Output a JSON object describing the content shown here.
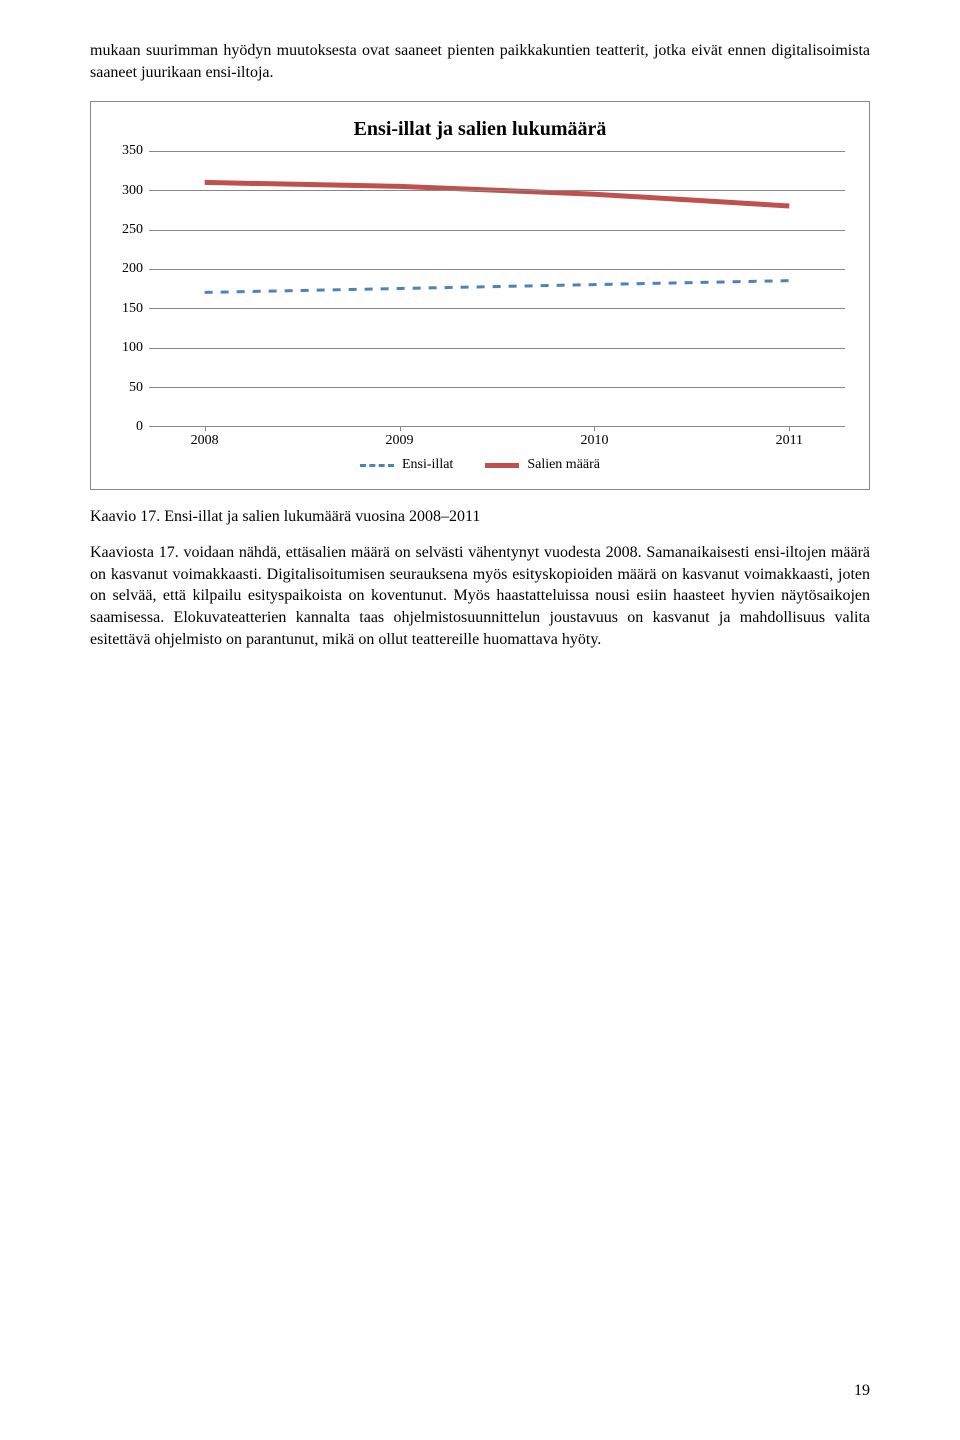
{
  "paragraphs": {
    "intro": "mukaan suurimman hyödyn muutoksesta ovat saaneet pienten paikkakuntien teatterit, jotka eivät ennen digitalisoimista saaneet juurikaan ensi-iltoja.",
    "body": "Kaaviosta 17. voidaan nähdä, ettäsalien määrä on selvästi vähentynyt vuodesta 2008. Samanaikaisesti ensi-iltojen määrä on kasvanut voimakkaasti. Digitalisoitumisen seurauksena myös esityskopioiden määrä on kasvanut voimakkaasti, joten on selvää, että kilpailu esityspaikoista on koventunut. Myös haastatteluissa nousi esiin haasteet hyvien näytösaikojen saamisessa. Elokuvateatterien kannalta taas ohjelmistosuunnittelun joustavuus on kasvanut ja mahdollisuus valita esitettävä ohjelmisto on parantunut, mikä on ollut teattereille huomattava hyöty."
  },
  "caption": "Kaavio 17. Ensi-illat ja salien lukumäärä vuosina 2008–2011",
  "page_number": "19",
  "chart": {
    "type": "line",
    "title": "Ensi-illat ja salien lukumäärä",
    "ylim": [
      0,
      350
    ],
    "ytick_step": 50,
    "categories": [
      "2008",
      "2009",
      "2010",
      "2011"
    ],
    "series": [
      {
        "name": "Ensi-illat",
        "values": [
          170,
          175,
          180,
          185
        ],
        "color": "#4f81bd",
        "dash": "8,8",
        "width": 3
      },
      {
        "name": "Salien määrä",
        "values": [
          310,
          305,
          295,
          280
        ],
        "color": "#c0504d",
        "dash": "",
        "width": 5
      }
    ],
    "background": "#ffffff",
    "grid_color": "#888888",
    "border_color": "#888888",
    "label_fontsize": 14,
    "title_fontsize": 20
  }
}
